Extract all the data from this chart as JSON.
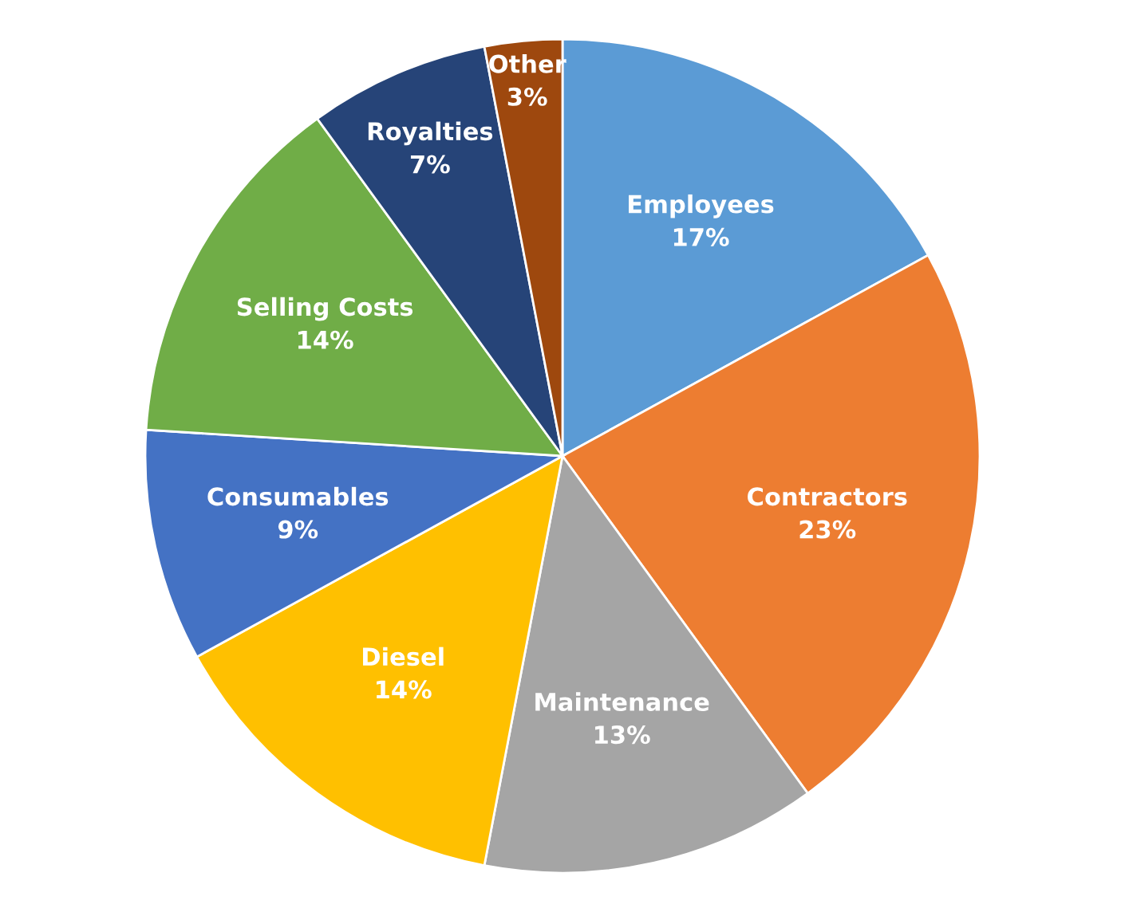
{
  "chart_data": {
    "type": "pie",
    "categories": [
      "Employees",
      "Contractors",
      "Maintenance",
      "Diesel",
      "Consumables",
      "Selling Costs",
      "Royalties",
      "Other"
    ],
    "values": [
      17,
      23,
      13,
      14,
      9,
      14,
      7,
      3
    ],
    "colors": [
      "#5b9bd5",
      "#ed7d31",
      "#a5a5a5",
      "#ffc000",
      "#4472c4",
      "#70ad47",
      "#264478",
      "#9e480e"
    ],
    "value_labels": [
      "17%",
      "23%",
      "13%",
      "14%",
      "9%",
      "14%",
      "7%",
      "3%"
    ],
    "legend": false
  }
}
